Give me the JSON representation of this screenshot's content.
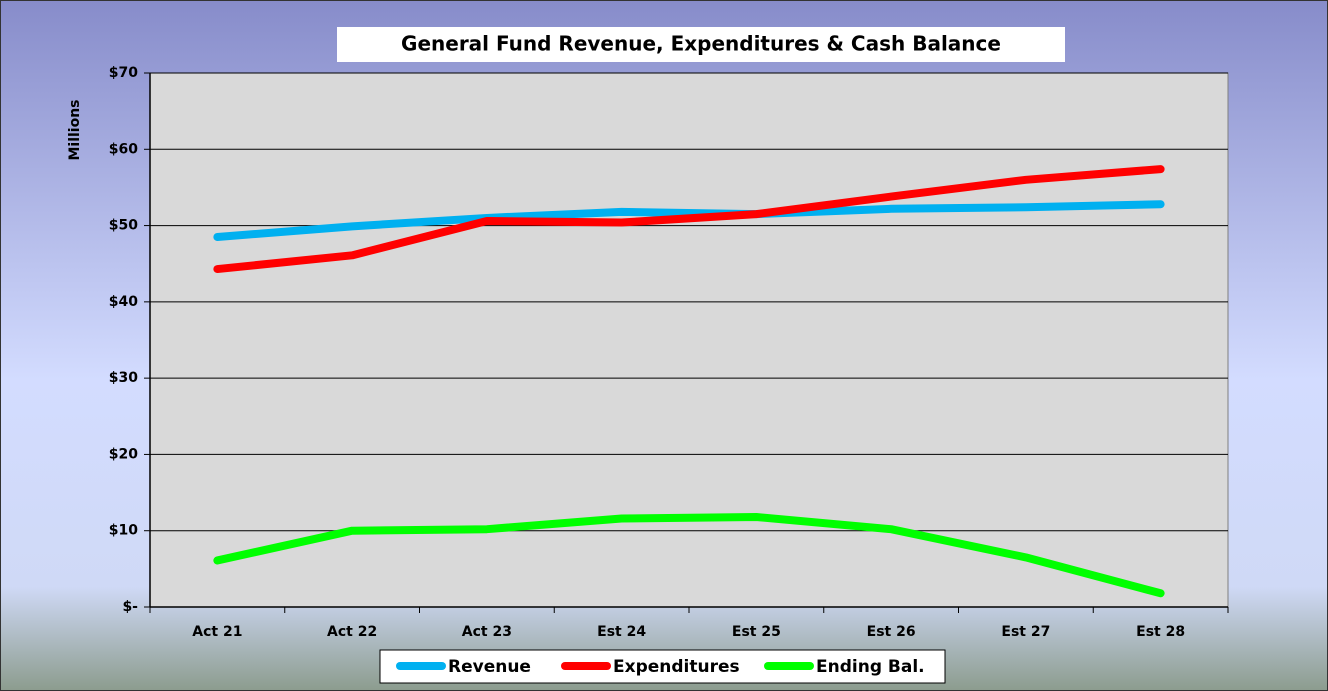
{
  "chart_data": {
    "type": "line",
    "title": "General Fund Revenue, Expenditures & Cash Balance",
    "y_label": "Millions",
    "categories": [
      "Act 21",
      "Act 22",
      "Act 23",
      "Est 24",
      "Est 25",
      "Est 26",
      "Est 27",
      "Est 28"
    ],
    "series": [
      {
        "name": "Revenue",
        "color": "#00b0f0",
        "values": [
          48.5,
          49.9,
          51.0,
          51.8,
          51.5,
          52.2,
          52.4,
          52.8
        ]
      },
      {
        "name": "Expenditures",
        "color": "#ff0000",
        "values": [
          44.3,
          46.1,
          50.6,
          50.4,
          51.5,
          53.8,
          56.0,
          57.4
        ]
      },
      {
        "name": "Ending Bal.",
        "color": "#00ff00",
        "values": [
          6.1,
          10.0,
          10.2,
          11.6,
          11.8,
          10.2,
          6.5,
          1.8
        ]
      }
    ],
    "ylim": [
      0,
      70
    ],
    "yticks": [
      {
        "value": 0,
        "label": "$-"
      },
      {
        "value": 10,
        "label": "$10"
      },
      {
        "value": 20,
        "label": "$20"
      },
      {
        "value": 30,
        "label": "$30"
      },
      {
        "value": 40,
        "label": "$40"
      },
      {
        "value": 50,
        "label": "$50"
      },
      {
        "value": 60,
        "label": "$60"
      },
      {
        "value": 70,
        "label": "$70"
      }
    ],
    "grid": true,
    "legend": "bottom"
  }
}
